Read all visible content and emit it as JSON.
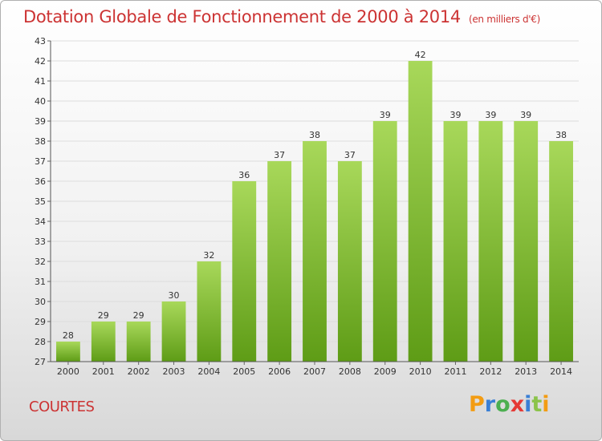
{
  "title": "Dotation Globale de Fonctionnement de 2000 à 2014",
  "title_unit": "(en milliers d'€)",
  "commune": "COURTES",
  "logo": {
    "letters": [
      "P",
      "r",
      "o",
      "x",
      "i",
      "t",
      "i"
    ],
    "colors": [
      "#f39c12",
      "#3a7fd5",
      "#4caf50",
      "#e53935",
      "#3a7fd5",
      "#8bc34a",
      "#f39c12"
    ]
  },
  "colors": {
    "bar_top": "#a8d85a",
    "bar_bottom": "#5e9c16",
    "grid": "#dddddd",
    "title": "#cc3333"
  },
  "chart_data": {
    "type": "bar",
    "title": "Dotation Globale de Fonctionnement de 2000 à 2014",
    "xlabel": "",
    "ylabel": "",
    "categories": [
      "2000",
      "2001",
      "2002",
      "2003",
      "2004",
      "2005",
      "2006",
      "2007",
      "2008",
      "2009",
      "2010",
      "2011",
      "2012",
      "2013",
      "2014"
    ],
    "values": [
      28,
      29,
      29,
      30,
      32,
      36,
      37,
      38,
      37,
      39,
      42,
      39,
      39,
      39,
      38
    ],
    "ylim": [
      27,
      43
    ],
    "yticks": [
      27,
      28,
      29,
      30,
      31,
      32,
      33,
      34,
      35,
      36,
      37,
      38,
      39,
      40,
      41,
      42,
      43
    ],
    "grid": true
  }
}
